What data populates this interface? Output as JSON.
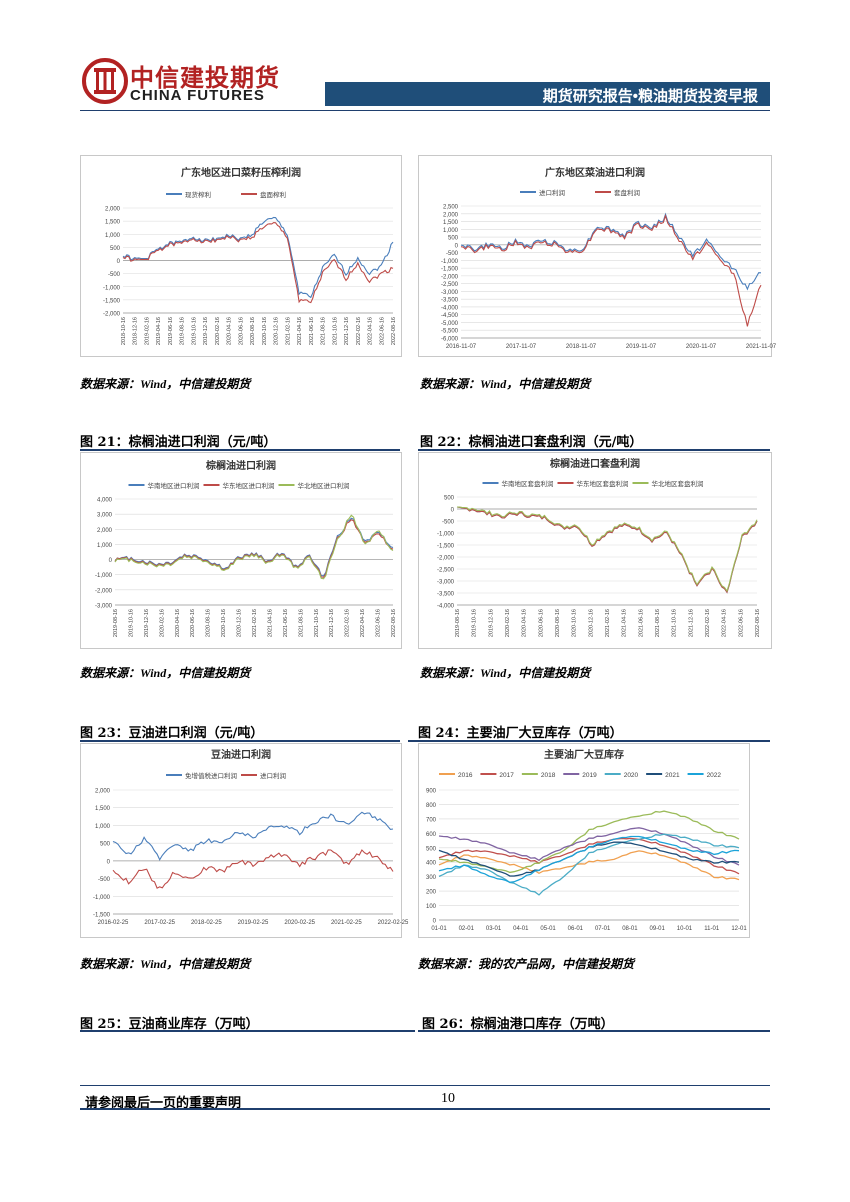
{
  "header": {
    "company_cn": "中信建投期货",
    "company_en": "CHINA FUTURES",
    "report_title": "期货研究报告•粮油期货投资早报"
  },
  "colors": {
    "blue": "#4a7ebb",
    "red": "#be4b48",
    "green": "#9bbb59",
    "navy": "#1f4e79"
  },
  "sources": {
    "s1": "数据来源：Wind，中信建投期货",
    "s2": "数据来源：Wind，中信建投期货",
    "s3": "数据来源：Wind，中信建投期货",
    "s4": "数据来源：Wind，中信建投期货",
    "s5": "数据来源：Wind，中信建投期货",
    "s6": "数据来源：我的农产品网，中信建投期货"
  },
  "figures": {
    "f21": "图 21：棕榈油进口利润（元/吨）",
    "f22": "图 22：棕榈油进口套盘利润（元/吨）",
    "f23": "图 23：豆油进口利润（元/吨）",
    "f24": "图 24：主要油厂大豆库存（万吨）",
    "f25": "图 25：豆油商业库存（万吨）",
    "f26": "图 26：棕榈油港口库存（万吨）"
  },
  "footer": {
    "disclaimer": "请参阅最后一页的重要声明",
    "page_number": "10"
  },
  "chart_data": [
    {
      "id": "c1",
      "type": "line",
      "title": "广东地区进口菜籽压榨利润",
      "ylim": [
        -2000,
        2000
      ],
      "yticks": [
        "2,000",
        "1,500",
        "1,000",
        "500",
        "0",
        "-500",
        "-1,000",
        "-1,500",
        "-2,000"
      ],
      "xticks": [
        "2018-10-16",
        "2018-12-16",
        "2019-02-16",
        "2019-04-16",
        "2019-06-16",
        "2019-08-16",
        "2019-10-16",
        "2019-12-16",
        "2020-02-16",
        "2020-04-16",
        "2020-06-16",
        "2020-08-16",
        "2020-10-16",
        "2020-12-16",
        "2021-02-16",
        "2021-04-16",
        "2021-06-16",
        "2021-08-16",
        "2021-10-16",
        "2021-12-16",
        "2022-02-16",
        "2022-04-16",
        "2022-06-16",
        "2022-08-16"
      ],
      "series": [
        {
          "name": "现货榨利",
          "color": "#4a7ebb",
          "values": [
            200,
            50,
            80,
            450,
            650,
            700,
            900,
            750,
            850,
            950,
            800,
            1000,
            1500,
            1600,
            1000,
            -1200,
            -1400,
            -300,
            200,
            -500,
            100,
            -500,
            -200,
            700
          ]
        },
        {
          "name": "盘面榨利",
          "color": "#be4b48",
          "values": [
            150,
            0,
            50,
            400,
            600,
            650,
            850,
            700,
            800,
            900,
            750,
            900,
            1300,
            1400,
            900,
            -1500,
            -1600,
            -500,
            0,
            -700,
            -100,
            -800,
            -500,
            -300
          ]
        }
      ]
    },
    {
      "id": "c2",
      "type": "line",
      "title": "广东地区菜油进口利润",
      "ylim": [
        -6000,
        2500
      ],
      "yticks": [
        "2,500",
        "2,000",
        "1,500",
        "1,000",
        "500",
        "0",
        "-500",
        "-1,000",
        "-1,500",
        "-2,000",
        "-2,500",
        "-3,000",
        "-3,500",
        "-4,000",
        "-4,500",
        "-5,000",
        "-5,500",
        "-6,000"
      ],
      "xticks": [
        "2016-11-07",
        "2017-11-07",
        "2018-11-07",
        "2019-11-07",
        "2020-11-07",
        "2021-11-07"
      ],
      "series": [
        {
          "name": "进口利润",
          "color": "#4a7ebb",
          "values": [
            100,
            -300,
            0,
            -200,
            200,
            -100,
            300,
            100,
            -400,
            -200,
            1200,
            1000,
            600,
            1400,
            1100,
            1800,
            500,
            -700,
            300,
            -800,
            -1500,
            -2800,
            -1800
          ]
        },
        {
          "name": "套盘利润",
          "color": "#be4b48",
          "values": [
            0,
            -400,
            -100,
            -300,
            100,
            -200,
            200,
            0,
            -500,
            -300,
            1100,
            900,
            500,
            1300,
            1000,
            1700,
            300,
            -900,
            100,
            -1000,
            -1800,
            -5200,
            -2600
          ]
        }
      ]
    },
    {
      "id": "c3",
      "type": "line",
      "title": "棕榈油进口利润",
      "ylim": [
        -3000,
        4000
      ],
      "yticks": [
        "4,000",
        "3,000",
        "2,000",
        "1,000",
        "0",
        "-1,000",
        "-2,000",
        "-3,000"
      ],
      "xticks": [
        "2019-08-16",
        "2019-10-16",
        "2019-12-16",
        "2020-02-16",
        "2020-04-16",
        "2020-06-16",
        "2020-08-16",
        "2020-10-16",
        "2020-12-16",
        "2021-02-16",
        "2021-04-16",
        "2021-06-16",
        "2021-08-16",
        "2021-10-16",
        "2021-12-16",
        "2022-02-16",
        "2022-04-16",
        "2022-06-16",
        "2022-08-16"
      ],
      "series": [
        {
          "name": "华南地区进口利润",
          "color": "#4a7ebb",
          "values": [
            0,
            100,
            -100,
            -300,
            -200,
            300,
            200,
            -200,
            -600,
            200,
            400,
            -100,
            500,
            -500,
            300,
            -1200,
            1500,
            2800,
            1200,
            1800,
            800
          ]
        },
        {
          "name": "华东地区进口利润",
          "color": "#be4b48",
          "values": [
            0,
            50,
            -150,
            -350,
            -250,
            250,
            150,
            -250,
            -650,
            150,
            350,
            -150,
            450,
            -550,
            250,
            -1300,
            1400,
            2700,
            1100,
            1700,
            700
          ]
        },
        {
          "name": "华北地区进口利润",
          "color": "#9bbb59",
          "values": [
            -50,
            0,
            -200,
            -400,
            -300,
            200,
            100,
            -300,
            -700,
            100,
            300,
            -200,
            400,
            -600,
            200,
            -1400,
            1300,
            3000,
            1000,
            1900,
            600
          ]
        }
      ]
    },
    {
      "id": "c4",
      "type": "line",
      "title": "棕榈油进口套盘利润",
      "ylim": [
        -4000,
        500
      ],
      "yticks": [
        "500",
        "0",
        "-500",
        "-1,000",
        "-1,500",
        "-2,000",
        "-2,500",
        "-3,000",
        "-3,500",
        "-4,000"
      ],
      "xticks": [
        "2019-08-16",
        "2019-10-16",
        "2019-12-16",
        "2020-02-16",
        "2020-04-16",
        "2020-06-16",
        "2020-08-16",
        "2020-10-16",
        "2020-12-16",
        "2021-02-16",
        "2021-04-16",
        "2021-06-16",
        "2021-08-16",
        "2021-10-16",
        "2021-12-16",
        "2022-02-16",
        "2022-04-16",
        "2022-06-16",
        "2022-08-16"
      ],
      "series": [
        {
          "name": "华南地区套盘利润",
          "color": "#4a7ebb",
          "values": [
            0,
            0,
            -200,
            -300,
            -200,
            -300,
            -400,
            -800,
            -700,
            -1500,
            -1000,
            -700,
            -800,
            -1300,
            -1000,
            -2000,
            -3200,
            -2500,
            -3500,
            -1200,
            -500
          ]
        },
        {
          "name": "华东地区套盘利润",
          "color": "#be4b48",
          "values": [
            0,
            0,
            -200,
            -300,
            -200,
            -300,
            -400,
            -800,
            -700,
            -1500,
            -1000,
            -700,
            -800,
            -1300,
            -1000,
            -2000,
            -3200,
            -2500,
            -3500,
            -1200,
            -500
          ]
        },
        {
          "name": "华北地区套盘利润",
          "color": "#9bbb59",
          "values": [
            0,
            50,
            -150,
            -250,
            -150,
            -250,
            -350,
            -750,
            -650,
            -1450,
            -950,
            -650,
            -750,
            -1250,
            -950,
            -1950,
            -3150,
            -2450,
            -3450,
            -1150,
            -450
          ]
        }
      ]
    },
    {
      "id": "c5",
      "type": "line",
      "title": "豆油进口利润",
      "ylim": [
        -1500,
        2000
      ],
      "yticks": [
        "2,000",
        "1,500",
        "1,000",
        "500",
        "0",
        "-500",
        "-1,000",
        "-1,500"
      ],
      "xticks": [
        "2016-02-25",
        "2017-02-25",
        "2018-02-25",
        "2019-02-25",
        "2020-02-25",
        "2021-02-25",
        "2022-02-25"
      ],
      "series": [
        {
          "name": "免增值税进口利润",
          "color": "#4a7ebb",
          "values": [
            500,
            200,
            600,
            100,
            500,
            300,
            600,
            500,
            800,
            700,
            900,
            1000,
            800,
            1100,
            1300,
            1000,
            1400,
            1200,
            900
          ]
        },
        {
          "name": "进口利润",
          "color": "#be4b48",
          "values": [
            -300,
            -600,
            -200,
            -800,
            -300,
            -500,
            -200,
            -300,
            0,
            -100,
            100,
            200,
            -100,
            100,
            300,
            -100,
            300,
            100,
            -300
          ]
        }
      ]
    },
    {
      "id": "c6",
      "type": "line",
      "title": "主要油厂大豆库存",
      "ylim": [
        0,
        900
      ],
      "yticks": [
        "900",
        "800",
        "700",
        "600",
        "500",
        "400",
        "300",
        "200",
        "100",
        "0"
      ],
      "xticks": [
        "01-01",
        "02-01",
        "03-01",
        "04-01",
        "05-01",
        "06-01",
        "07-01",
        "08-01",
        "09-01",
        "10-01",
        "11-01",
        "12-01"
      ],
      "series": [
        {
          "name": "2016",
          "color": "#f0a050",
          "values": [
            380,
            450,
            420,
            380,
            330,
            360,
            400,
            420,
            480,
            450,
            380,
            300,
            280
          ]
        },
        {
          "name": "2017",
          "color": "#c0504d",
          "values": [
            430,
            480,
            470,
            440,
            400,
            450,
            520,
            560,
            560,
            520,
            450,
            380,
            320
          ]
        },
        {
          "name": "2018",
          "color": "#9bbb59",
          "values": [
            420,
            400,
            360,
            330,
            400,
            480,
            620,
            680,
            720,
            760,
            700,
            620,
            560
          ]
        },
        {
          "name": "2019",
          "color": "#8064a2",
          "values": [
            580,
            560,
            520,
            460,
            420,
            500,
            560,
            600,
            640,
            600,
            520,
            440,
            380
          ]
        },
        {
          "name": "2020",
          "color": "#4bacc6",
          "values": [
            300,
            380,
            340,
            250,
            180,
            300,
            460,
            520,
            560,
            600,
            560,
            520,
            500
          ]
        },
        {
          "name": "2021",
          "color": "#1f4e79",
          "values": [
            480,
            420,
            360,
            300,
            350,
            420,
            500,
            540,
            520,
            480,
            420,
            400,
            400
          ]
        },
        {
          "name": "2022",
          "color": "#1ba3d9",
          "values": [
            340,
            380,
            300,
            260,
            350,
            420,
            500,
            560,
            580,
            540,
            480,
            460,
            480
          ]
        }
      ]
    }
  ]
}
